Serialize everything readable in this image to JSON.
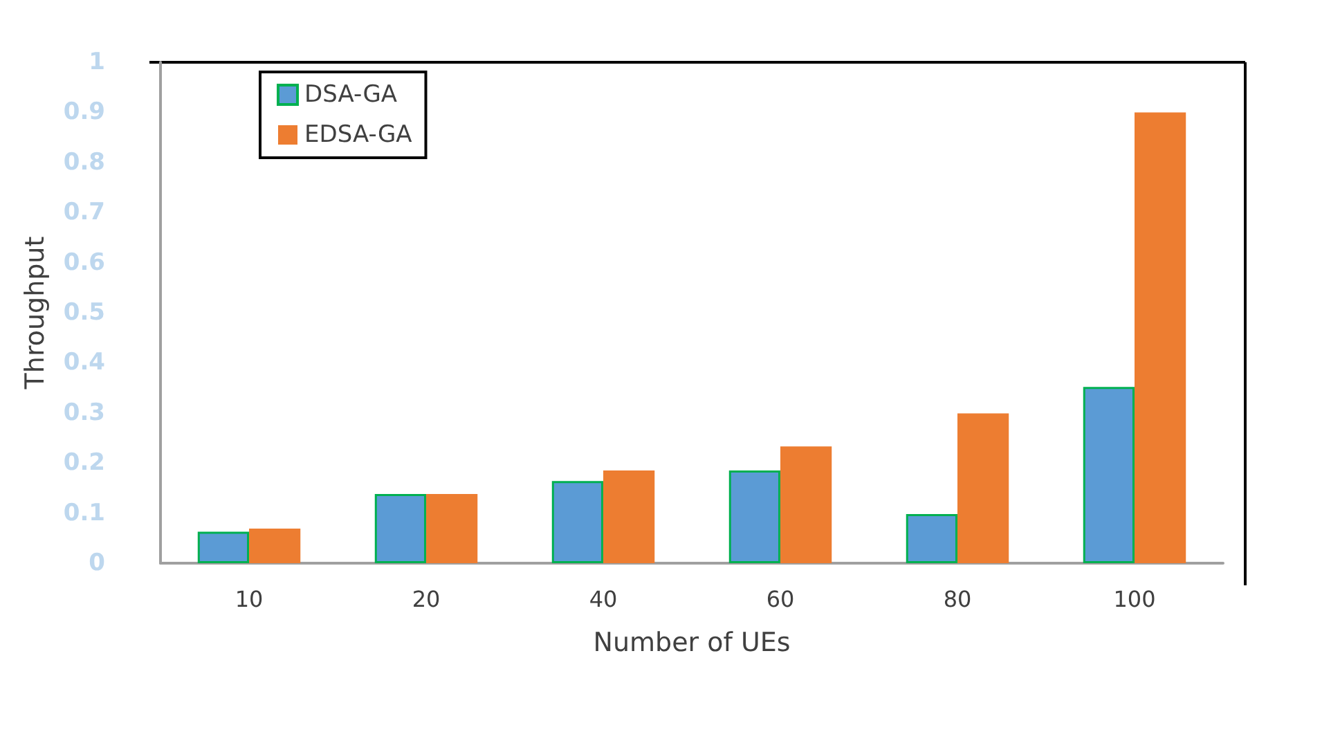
{
  "chart_data": {
    "type": "bar",
    "xlabel": "Number of UEs",
    "ylabel": "Throughput",
    "categories": [
      "10",
      "20",
      "40",
      "60",
      "80",
      "100"
    ],
    "series": [
      {
        "name": "DSA-GA",
        "color": "#5b9bd5",
        "values": [
          0.063,
          0.138,
          0.164,
          0.185,
          0.098,
          0.352
        ]
      },
      {
        "name": "EDSA-GA",
        "color": "#ed7d31",
        "values": [
          0.069,
          0.138,
          0.185,
          0.233,
          0.299,
          0.9
        ]
      }
    ],
    "ylim": [
      0,
      1
    ],
    "yticks": [
      0,
      0.1,
      0.2,
      0.3,
      0.4,
      0.5,
      0.6,
      0.7,
      0.8,
      0.9,
      1
    ],
    "grid": false,
    "legend": "top left"
  }
}
